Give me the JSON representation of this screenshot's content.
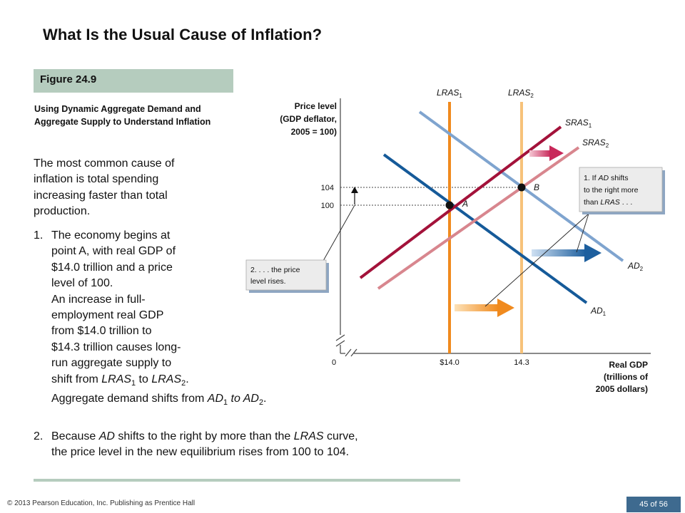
{
  "slide": {
    "title": "What Is the Usual Cause of Inflation?",
    "figure_label": "Figure 24.9",
    "subtitle": "Using Dynamic Aggregate Demand and Aggregate Supply to Understand Inflation"
  },
  "body": {
    "p1": [
      "The most common cause of",
      "inflation is total spending",
      "increasing faster than total",
      "production."
    ],
    "item1": {
      "num": "1.",
      "lines": [
        "The economy begins at",
        "point A, with real GDP of",
        "$14.0 trillion and a price",
        "level of 100.",
        "An increase in full-",
        "employment real GDP",
        "from $14.0 trillion to",
        "$14.3 trillion causes long-",
        "run aggregate supply to"
      ],
      "shift_pre": "shift from ",
      "shift_a": "LRAS",
      "shift_a_sub": "1",
      "shift_mid": " to ",
      "shift_b": "LRAS",
      "shift_b_sub": "2",
      "shift_post": ".",
      "ad_pre": "Aggregate demand shifts from ",
      "ad_a": "AD",
      "ad_a_sub": "1",
      "ad_mid": " to ",
      "ad_b": "AD",
      "ad_b_sub": "2",
      "ad_post": "."
    },
    "item2": {
      "num": "2.",
      "l1_pre": "Because ",
      "l1_ad": "AD",
      "l1_mid": " shifts to the right by more than the ",
      "l1_lras": "LRAS",
      "l1_post": " curve,",
      "l2": "the price level in the new equilibrium rises from 100 to 104."
    }
  },
  "diagram": {
    "y_axis_title": [
      "Price level",
      "(GDP deflator,",
      "2005 = 100)"
    ],
    "x_axis_title": [
      "Real GDP",
      "(trillions of",
      "2005 dollars)"
    ],
    "x_ticks": [
      "0",
      "$14.0",
      "14.3"
    ],
    "y_ticks": [
      "104",
      "100"
    ],
    "curve_labels": {
      "lras1": "LRAS",
      "lras1_sub": "1",
      "lras2": "LRAS",
      "lras2_sub": "2",
      "sras1": "SRAS",
      "sras1_sub": "1",
      "sras2": "SRAS",
      "sras2_sub": "2",
      "ad1": "AD",
      "ad1_sub": "1",
      "ad2": "AD",
      "ad2_sub": "2"
    },
    "points": {
      "a": "A",
      "b": "B"
    },
    "callout1": {
      "l1_pre": "1. If ",
      "l1_ad": "AD",
      "l1_post": " shifts",
      "l2": "to the right more",
      "l3_pre": "than ",
      "l3_lras": "LRAS",
      "l3_post": " . . ."
    },
    "callout2": {
      "l1": "2. . . . the price",
      "l2": "level rises."
    },
    "colors": {
      "lras1": "#f08a1e",
      "lras2": "#f7c27a",
      "sras1": "#a3123a",
      "sras2": "#d8868e",
      "ad1": "#155a99",
      "ad2": "#7fa4cf",
      "callout_bg": "#e8e8e8",
      "callout_shadow": "#8ea6c2"
    }
  },
  "footer": {
    "copyright": "© 2013 Pearson Education, Inc. Publishing as Prentice Hall",
    "page": "45 of 56"
  }
}
